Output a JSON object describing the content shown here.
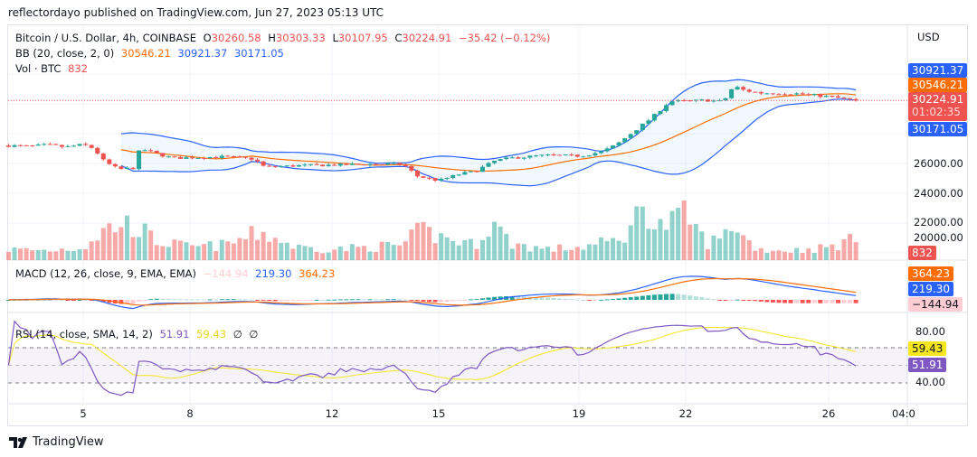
{
  "header": {
    "published": "reflectordayo published on TradingView.com, Jun 27, 2023 05:13 UTC"
  },
  "legend": {
    "symbol": "Bitcoin / U.S. Dollar, 4h, COINBASE",
    "o_label": "O",
    "o": "30260.58",
    "h_label": "H",
    "h": "30303.33",
    "l_label": "L",
    "l": "30107.95",
    "c_label": "C",
    "c": "30224.91",
    "change": "−35.42 (−0.12%)",
    "bb_label": "BB (20, close, 2, 0)",
    "bb_basis": "30546.21",
    "bb_upper": "30921.37",
    "bb_lower": "30171.05",
    "vol_label": "Vol · BTC",
    "vol": "832",
    "macd_label": "MACD (12, 26, close, 9, EMA, EMA)",
    "macd_hist": "−144.94",
    "macd_line": "219.30",
    "macd_signal": "364.23",
    "rsi_label": "RSI (14, close, SMA, 14, 2)",
    "rsi": "51.91",
    "rsi_ma": "59.43",
    "rsi_x1": "∅",
    "rsi_x2": "∅"
  },
  "price_axis": {
    "currency": "USD",
    "ticks": [
      "26000.00",
      "24000.00",
      "22000.00",
      "20000.00"
    ],
    "tags": {
      "bb_upper": "30921.37",
      "bb_basis": "30546.21",
      "last": "30224.91",
      "countdown": "01:02:35",
      "bb_lower": "30171.05",
      "vol": "832",
      "macd_signal": "364.23",
      "macd_line": "219.30",
      "macd_hist": "−144.94",
      "rsi_ma": "59.43",
      "rsi": "51.91"
    },
    "rsi_ticks": [
      "80.00",
      "40.00"
    ]
  },
  "time_axis": {
    "labels": [
      "5",
      "8",
      "12",
      "15",
      "19",
      "22",
      "26",
      "04:0"
    ]
  },
  "colors": {
    "up": "#26a69a",
    "down": "#ef5350",
    "bb_band": "#2962ff",
    "bb_basis": "#ff6d00",
    "macd": "#2962ff",
    "signal": "#ff6d00",
    "rsi": "#7e57c2",
    "rsi_ma": "#f5e61f"
  },
  "footer": {
    "brand": "TradingView"
  },
  "chart_data": {
    "type": "candlestick",
    "symbol": "BTCUSD",
    "interval": "4h",
    "x_unit": "day of June 2023",
    "close_keypoints": [
      [
        2.9,
        27200
      ],
      [
        3.5,
        27150
      ],
      [
        4,
        27250
      ],
      [
        4.5,
        27100
      ],
      [
        5,
        27270
      ],
      [
        5.3,
        27000
      ],
      [
        5.6,
        26100
      ],
      [
        6,
        25600
      ],
      [
        6.4,
        25700
      ],
      [
        6.6,
        27000
      ],
      [
        7,
        26700
      ],
      [
        7.5,
        26360
      ],
      [
        8,
        26400
      ],
      [
        9,
        26450
      ],
      [
        9.8,
        26300
      ],
      [
        10.1,
        25760
      ],
      [
        11,
        25850
      ],
      [
        12,
        25900
      ],
      [
        13,
        25950
      ],
      [
        14,
        25940
      ],
      [
        14.4,
        25150
      ],
      [
        15,
        24850
      ],
      [
        15.6,
        25300
      ],
      [
        16,
        25450
      ],
      [
        16.6,
        26200
      ],
      [
        17,
        26360
      ],
      [
        18,
        26550
      ],
      [
        19,
        26500
      ],
      [
        19.6,
        26800
      ],
      [
        20,
        27270
      ],
      [
        20.5,
        28180
      ],
      [
        21,
        29090
      ],
      [
        21.5,
        30180
      ],
      [
        22,
        30180
      ],
      [
        22.5,
        30250
      ],
      [
        23,
        30150
      ],
      [
        23.3,
        31200
      ],
      [
        23.6,
        30900
      ],
      [
        24,
        30730
      ],
      [
        25,
        30700
      ],
      [
        26,
        30480
      ],
      [
        26.75,
        30224.91
      ]
    ],
    "volume_keypoints": [
      [
        2.9,
        500
      ],
      [
        4,
        450
      ],
      [
        5,
        600
      ],
      [
        5.5,
        1300
      ],
      [
        6,
        1700
      ],
      [
        6.5,
        1600
      ],
      [
        7,
        900
      ],
      [
        8,
        600
      ],
      [
        9,
        700
      ],
      [
        10,
        1300
      ],
      [
        11,
        600
      ],
      [
        12,
        500
      ],
      [
        13,
        600
      ],
      [
        14,
        700
      ],
      [
        14.5,
        1400
      ],
      [
        15,
        1100
      ],
      [
        16,
        700
      ],
      [
        16.5,
        1800
      ],
      [
        17,
        800
      ],
      [
        18,
        500
      ],
      [
        19,
        600
      ],
      [
        20,
        900
      ],
      [
        20.5,
        1600
      ],
      [
        20.8,
        3300
      ],
      [
        21,
        1500
      ],
      [
        21.5,
        1700
      ],
      [
        22,
        2100
      ],
      [
        22.5,
        800
      ],
      [
        23,
        1000
      ],
      [
        23.3,
        1900
      ],
      [
        23.6,
        1000
      ],
      [
        24,
        500
      ],
      [
        25,
        450
      ],
      [
        26,
        600
      ],
      [
        26.5,
        900
      ],
      [
        26.75,
        832
      ]
    ],
    "overlays": [
      "BB (20, close, 2, 0)"
    ],
    "panes": [
      "Volume",
      "MACD (12, 26, 9)",
      "RSI (14)"
    ],
    "rsi_levels": [
      70,
      50,
      30
    ],
    "price_range": [
      20000,
      31500
    ]
  }
}
